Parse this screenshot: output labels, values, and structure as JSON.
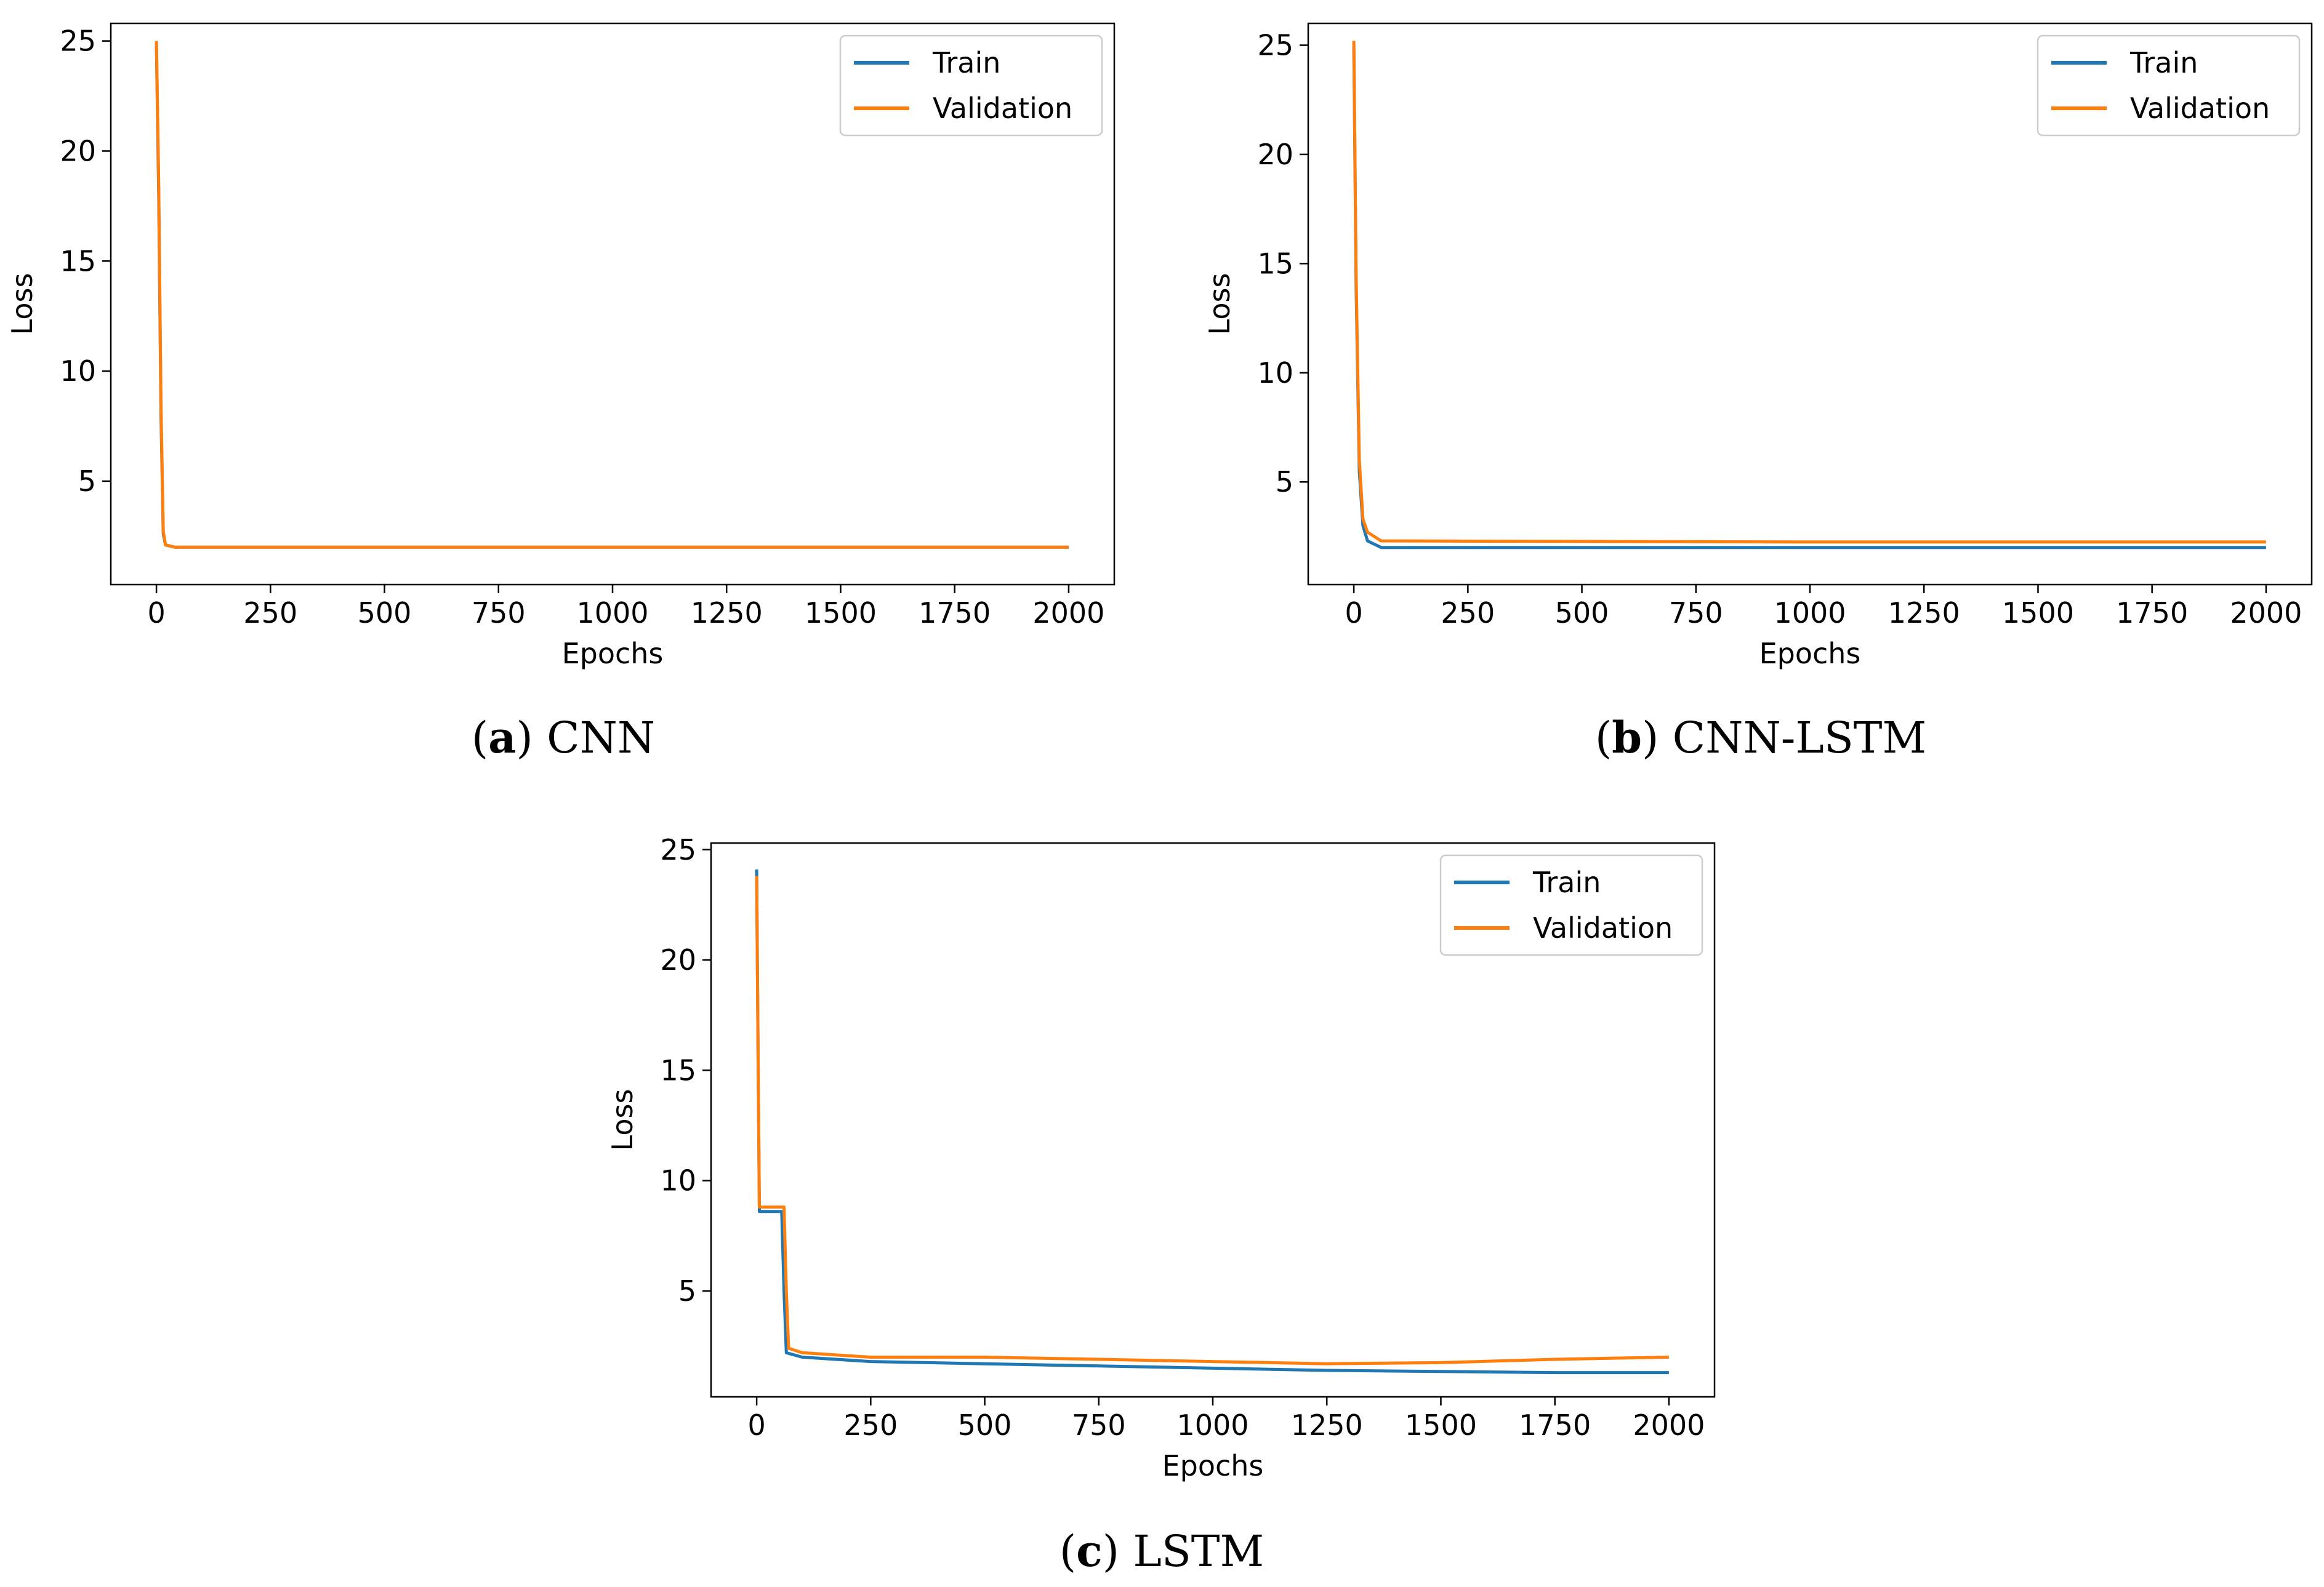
{
  "chart_data": [
    {
      "id": "a",
      "type": "line",
      "caption_letter": "a",
      "caption_text": "CNN",
      "xlabel": "Epochs",
      "ylabel": "Loss",
      "xlim": [
        -100,
        2100
      ],
      "ylim": [
        0.3,
        25.8
      ],
      "xticks": [
        0,
        250,
        500,
        750,
        1000,
        1250,
        1500,
        1750,
        2000
      ],
      "yticks": [
        5,
        10,
        15,
        20,
        25
      ],
      "grid": false,
      "legend_position": "top-right",
      "series": [
        {
          "name": "Train",
          "color": "#1f77b4",
          "points": [
            [
              0,
              24.8
            ],
            [
              5,
              18
            ],
            [
              10,
              8
            ],
            [
              15,
              2.6
            ],
            [
              20,
              2.1
            ],
            [
              40,
              2.0
            ],
            [
              2000,
              2.0
            ]
          ]
        },
        {
          "name": "Validation",
          "color": "#ff7f0e",
          "points": [
            [
              0,
              25.0
            ],
            [
              5,
              18.5
            ],
            [
              10,
              8.5
            ],
            [
              15,
              2.7
            ],
            [
              20,
              2.1
            ],
            [
              40,
              2.0
            ],
            [
              2000,
              2.0
            ]
          ]
        }
      ]
    },
    {
      "id": "b",
      "type": "line",
      "caption_letter": "b",
      "caption_text": "CNN-LSTM",
      "xlabel": "Epochs",
      "ylabel": "Loss",
      "xlim": [
        -100,
        2100
      ],
      "ylim": [
        0.3,
        26.0
      ],
      "xticks": [
        0,
        250,
        500,
        750,
        1000,
        1250,
        1500,
        1750,
        2000
      ],
      "yticks": [
        5,
        10,
        15,
        20,
        25
      ],
      "grid": false,
      "legend_position": "top-right",
      "series": [
        {
          "name": "Train",
          "color": "#1f77b4",
          "points": [
            [
              0,
              25.0
            ],
            [
              5,
              14
            ],
            [
              12,
              5.5
            ],
            [
              20,
              3.0
            ],
            [
              30,
              2.3
            ],
            [
              60,
              2.0
            ],
            [
              2000,
              2.0
            ]
          ]
        },
        {
          "name": "Validation",
          "color": "#ff7f0e",
          "points": [
            [
              0,
              25.2
            ],
            [
              5,
              14.5
            ],
            [
              12,
              6
            ],
            [
              20,
              3.3
            ],
            [
              30,
              2.7
            ],
            [
              60,
              2.3
            ],
            [
              1000,
              2.25
            ],
            [
              2000,
              2.25
            ]
          ]
        }
      ]
    },
    {
      "id": "c",
      "type": "line",
      "caption_letter": "c",
      "caption_text": "LSTM",
      "xlabel": "Epochs",
      "ylabel": "Loss",
      "xlim": [
        -100,
        2100
      ],
      "ylim": [
        0.2,
        25.3
      ],
      "xticks": [
        0,
        250,
        500,
        750,
        1000,
        1250,
        1500,
        1750,
        2000
      ],
      "yticks": [
        5,
        10,
        15,
        20,
        25
      ],
      "grid": false,
      "legend_position": "top-right",
      "series": [
        {
          "name": "Train",
          "color": "#1f77b4",
          "points": [
            [
              0,
              24.1
            ],
            [
              3,
              16
            ],
            [
              6,
              8.6
            ],
            [
              55,
              8.6
            ],
            [
              60,
              5
            ],
            [
              65,
              2.2
            ],
            [
              100,
              2.0
            ],
            [
              250,
              1.8
            ],
            [
              500,
              1.7
            ],
            [
              750,
              1.6
            ],
            [
              1000,
              1.5
            ],
            [
              1250,
              1.4
            ],
            [
              1500,
              1.35
            ],
            [
              1750,
              1.3
            ],
            [
              2000,
              1.3
            ]
          ]
        },
        {
          "name": "Validation",
          "color": "#ff7f0e",
          "points": [
            [
              0,
              23.8
            ],
            [
              3,
              16
            ],
            [
              6,
              8.8
            ],
            [
              60,
              8.8
            ],
            [
              65,
              5
            ],
            [
              70,
              2.4
            ],
            [
              100,
              2.2
            ],
            [
              250,
              2.0
            ],
            [
              500,
              2.0
            ],
            [
              750,
              1.9
            ],
            [
              1000,
              1.8
            ],
            [
              1250,
              1.7
            ],
            [
              1500,
              1.75
            ],
            [
              1750,
              1.9
            ],
            [
              2000,
              2.0
            ]
          ]
        }
      ]
    }
  ]
}
